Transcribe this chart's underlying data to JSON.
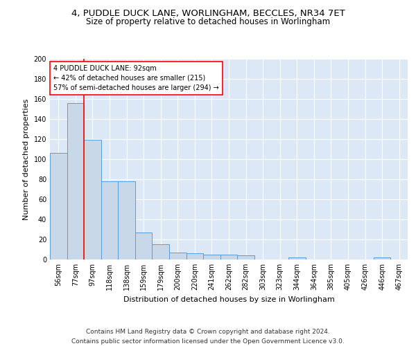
{
  "title1": "4, PUDDLE DUCK LANE, WORLINGHAM, BECCLES, NR34 7ET",
  "title2": "Size of property relative to detached houses in Worlingham",
  "xlabel": "Distribution of detached houses by size in Worlingham",
  "ylabel": "Number of detached properties",
  "categories": [
    "56sqm",
    "77sqm",
    "97sqm",
    "118sqm",
    "138sqm",
    "159sqm",
    "179sqm",
    "200sqm",
    "220sqm",
    "241sqm",
    "262sqm",
    "282sqm",
    "303sqm",
    "323sqm",
    "344sqm",
    "364sqm",
    "385sqm",
    "405sqm",
    "426sqm",
    "446sqm",
    "467sqm"
  ],
  "values": [
    106,
    156,
    119,
    78,
    78,
    27,
    15,
    7,
    6,
    5,
    5,
    4,
    0,
    0,
    2,
    0,
    0,
    0,
    0,
    2,
    0
  ],
  "bar_color": "#c8d8e8",
  "bar_edge_color": "#5b9bd5",
  "red_line_x": 1.5,
  "annotation_text": "4 PUDDLE DUCK LANE: 92sqm\n← 42% of detached houses are smaller (215)\n57% of semi-detached houses are larger (294) →",
  "annotation_box_color": "white",
  "annotation_box_edge_color": "red",
  "red_line_color": "red",
  "ylim": [
    0,
    200
  ],
  "yticks": [
    0,
    20,
    40,
    60,
    80,
    100,
    120,
    140,
    160,
    180,
    200
  ],
  "footnote": "Contains HM Land Registry data © Crown copyright and database right 2024.\nContains public sector information licensed under the Open Government Licence v3.0.",
  "bg_color": "#dce8f5",
  "grid_color": "#ffffff",
  "title1_fontsize": 9.5,
  "title2_fontsize": 8.5,
  "xlabel_fontsize": 8,
  "ylabel_fontsize": 8,
  "annotation_fontsize": 7,
  "footnote_fontsize": 6.5,
  "tick_fontsize": 7
}
